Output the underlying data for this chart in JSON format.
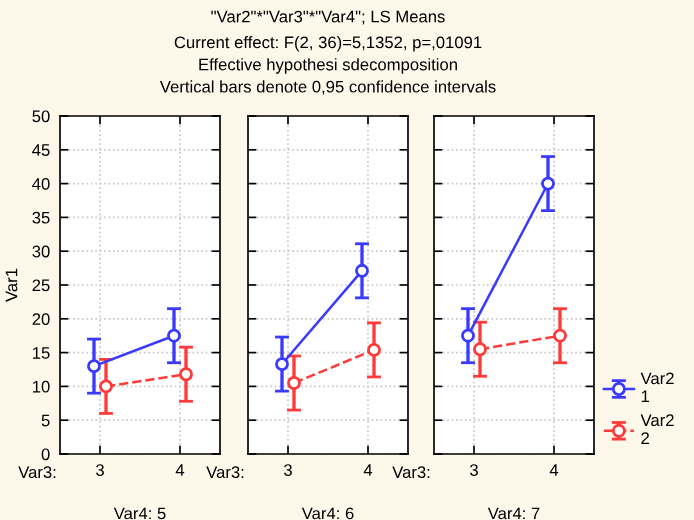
{
  "chart_data": [
    {
      "type": "line",
      "categories": [
        "3",
        "4"
      ],
      "xlabel": "Var4: 5",
      "ylabel": "Var1",
      "annotations": [
        "Var3:"
      ],
      "ylim": [
        0,
        50
      ],
      "yticks": [
        0,
        5,
        10,
        15,
        20,
        25,
        30,
        35,
        40,
        45,
        50
      ],
      "grid": true,
      "marker": "circle",
      "series": [
        {
          "color": "#3a3aff",
          "values": [
            13,
            17.5
          ],
          "errors": [
            4,
            4
          ],
          "line_style": "solid"
        },
        {
          "color": "#ff3a3a",
          "values": [
            10,
            11.8
          ],
          "errors": [
            4,
            4
          ],
          "line_style": "dashed"
        }
      ]
    },
    {
      "type": "line",
      "title": "\"Var2\"*\"Var3\"*\"Var4\"; LS Means",
      "subtitle": "Current effect: F(2, 36)=5,1352, p=,01091\nEffective hypothesi sdecomposition\nVertical bars denote 0,95 confidence intervals",
      "categories": [
        "3",
        "4"
      ],
      "xlabel": "Var4: 6",
      "annotations": [
        "Var3:"
      ],
      "ylim": [
        0,
        50
      ],
      "yticks": [
        0,
        5,
        10,
        15,
        20,
        25,
        30,
        35,
        40,
        45,
        50
      ],
      "tick_labels": "x",
      "grid": true,
      "marker": "circle",
      "series": [
        {
          "color": "#3a3aff",
          "values": [
            13.3,
            27.1
          ],
          "errors": [
            4,
            4
          ],
          "line_style": "solid"
        },
        {
          "color": "#ff3a3a",
          "values": [
            10.5,
            15.4
          ],
          "errors": [
            4,
            4
          ],
          "line_style": "dashed"
        }
      ]
    },
    {
      "type": "line",
      "categories": [
        "3",
        "4"
      ],
      "xlabel": "Var4: 7",
      "annotations": [
        "Var3:"
      ],
      "ylim": [
        0,
        50
      ],
      "yticks": [
        0,
        5,
        10,
        15,
        20,
        25,
        30,
        35,
        40,
        45,
        50
      ],
      "tick_labels": "x",
      "grid": true,
      "marker": "circle",
      "legend": "right",
      "series": [
        {
          "name": "Var2\n1",
          "color": "#3a3aff",
          "values": [
            17.5,
            40
          ],
          "errors": [
            4,
            4
          ],
          "line_style": "solid"
        },
        {
          "name": "Var2\n2",
          "color": "#ff3a3a",
          "values": [
            15.5,
            17.5
          ],
          "errors": [
            4,
            4
          ],
          "line_style": "dashed"
        }
      ]
    }
  ]
}
